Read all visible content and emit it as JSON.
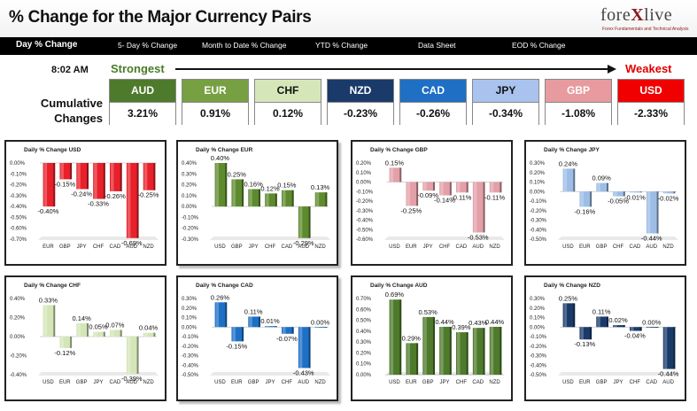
{
  "header": {
    "title": "% Change for the Major Currency Pairs",
    "logo_brand": "forexlive",
    "logo_tagline": "Forex Fundamentals and Technical Analysis"
  },
  "nav": {
    "items": [
      {
        "label": "Day % Change",
        "active": true
      },
      {
        "label": "5- Day % Change",
        "active": false
      },
      {
        "label": "Month to Date % Change",
        "active": false
      },
      {
        "label": "YTD % Change",
        "active": false
      },
      {
        "label": "Data Sheet",
        "active": false
      },
      {
        "label": "EOD % Change",
        "active": false
      }
    ]
  },
  "ranking": {
    "time": "8:02 AM",
    "strongest_label": "Strongest",
    "weakest_label": "Weakest",
    "cumulative_label_line1": "Cumulative",
    "cumulative_label_line2": "Changes",
    "currencies": [
      {
        "name": "AUD",
        "value": "3.21%",
        "bg": "#4e7a2c",
        "fg": "#ffffff"
      },
      {
        "name": "EUR",
        "value": "0.91%",
        "bg": "#77a043",
        "fg": "#ffffff"
      },
      {
        "name": "CHF",
        "value": "0.12%",
        "bg": "#d5e7b9",
        "fg": "#111111"
      },
      {
        "name": "NZD",
        "value": "-0.23%",
        "bg": "#1a3a6a",
        "fg": "#ffffff"
      },
      {
        "name": "CAD",
        "value": "-0.26%",
        "bg": "#1f6fc4",
        "fg": "#ffffff"
      },
      {
        "name": "JPY",
        "value": "-0.34%",
        "bg": "#a9c3ee",
        "fg": "#111111"
      },
      {
        "name": "GBP",
        "value": "-1.08%",
        "bg": "#e79b9f",
        "fg": "#ffffff"
      },
      {
        "name": "USD",
        "value": "-2.33%",
        "bg": "#f00000",
        "fg": "#ffffff"
      }
    ]
  },
  "chart_data": [
    {
      "type": "bar",
      "title": "Daily % Change USD",
      "categories": [
        "EUR",
        "GBP",
        "JPY",
        "CHF",
        "CAD",
        "AUD",
        "NZD"
      ],
      "values": [
        -0.4,
        -0.15,
        -0.24,
        -0.33,
        -0.26,
        -0.69,
        -0.25
      ],
      "ylim": [
        -0.7,
        0.0
      ],
      "yticks": [
        "0.00%",
        "-0.10%",
        "-0.20%",
        "-0.30%",
        "-0.40%",
        "-0.50%",
        "-0.60%",
        "-0.70%"
      ],
      "color": "#e8202a"
    },
    {
      "type": "bar",
      "title": "Daily % Change EUR",
      "categories": [
        "USD",
        "GBP",
        "JPY",
        "CHF",
        "CAD",
        "AUD",
        "NZD"
      ],
      "values": [
        0.4,
        0.25,
        0.16,
        0.12,
        0.15,
        -0.29,
        0.13
      ],
      "ylim": [
        -0.3,
        0.4
      ],
      "yticks": [
        "0.40%",
        "0.30%",
        "0.20%",
        "0.10%",
        "0.00%",
        "-0.10%",
        "-0.20%",
        "-0.30%"
      ],
      "color": "#5e8a2e"
    },
    {
      "type": "bar",
      "title": "Daily % Change GBP",
      "categories": [
        "USD",
        "EUR",
        "JPY",
        "CHF",
        "CAD",
        "AUD",
        "NZD"
      ],
      "values": [
        0.15,
        -0.25,
        -0.09,
        -0.14,
        -0.11,
        -0.53,
        -0.11
      ],
      "ylim": [
        -0.6,
        0.2
      ],
      "yticks": [
        "0.20%",
        "0.10%",
        "0.00%",
        "-0.10%",
        "-0.20%",
        "-0.30%",
        "-0.40%",
        "-0.50%",
        "-0.60%"
      ],
      "color": "#e3a0a8"
    },
    {
      "type": "bar",
      "title": "Daily % Change JPY",
      "categories": [
        "USD",
        "EUR",
        "GBP",
        "CHF",
        "CAD",
        "AUD",
        "NZD"
      ],
      "values": [
        0.24,
        -0.16,
        0.09,
        -0.05,
        -0.01,
        -0.44,
        -0.02
      ],
      "ylim": [
        -0.5,
        0.3
      ],
      "yticks": [
        "0.30%",
        "0.20%",
        "0.10%",
        "0.00%",
        "-0.10%",
        "-0.20%",
        "-0.30%",
        "-0.40%",
        "-0.50%"
      ],
      "color": "#9dbde6"
    },
    {
      "type": "bar",
      "title": "Daily % Change CHF",
      "categories": [
        "USD",
        "EUR",
        "GBP",
        "JPY",
        "CAD",
        "AUD",
        "NZD"
      ],
      "values": [
        0.33,
        -0.12,
        0.14,
        0.05,
        0.07,
        -0.39,
        0.04
      ],
      "ylim": [
        -0.4,
        0.4
      ],
      "yticks": [
        "0.40%",
        "0.20%",
        "0.00%",
        "-0.20%",
        "-0.40%"
      ],
      "color": "#d4e6b8"
    },
    {
      "type": "bar",
      "title": "Daily % Change CAD",
      "categories": [
        "USD",
        "EUR",
        "GBP",
        "JPY",
        "CHF",
        "AUD",
        "NZD"
      ],
      "values": [
        0.26,
        -0.15,
        0.11,
        0.01,
        -0.07,
        -0.43,
        0.0
      ],
      "ylim": [
        -0.5,
        0.3
      ],
      "yticks": [
        "0.30%",
        "0.20%",
        "0.10%",
        "0.00%",
        "-0.10%",
        "-0.20%",
        "-0.30%",
        "-0.40%",
        "-0.50%"
      ],
      "color": "#1e6fc6"
    },
    {
      "type": "bar",
      "title": "Daily % Change AUD",
      "categories": [
        "USD",
        "EUR",
        "GBP",
        "JPY",
        "CHF",
        "CAD",
        "NZD"
      ],
      "values": [
        0.69,
        0.29,
        0.53,
        0.44,
        0.39,
        0.43,
        0.44
      ],
      "ylim": [
        0.0,
        0.7
      ],
      "yticks": [
        "0.70%",
        "0.60%",
        "0.50%",
        "0.40%",
        "0.30%",
        "0.20%",
        "0.10%",
        "0.00%"
      ],
      "color": "#4e7a2c"
    },
    {
      "type": "bar",
      "title": "Daily % Change NZD",
      "categories": [
        "USD",
        "EUR",
        "GBP",
        "JPY",
        "CHF",
        "CAD",
        "AUD"
      ],
      "values": [
        0.25,
        -0.13,
        0.11,
        0.02,
        -0.04,
        0.0,
        -0.44
      ],
      "ylim": [
        -0.5,
        0.3
      ],
      "yticks": [
        "0.30%",
        "0.20%",
        "0.10%",
        "0.00%",
        "-0.10%",
        "-0.20%",
        "-0.30%",
        "-0.40%",
        "-0.50%"
      ],
      "color": "#1a3a6a"
    }
  ]
}
